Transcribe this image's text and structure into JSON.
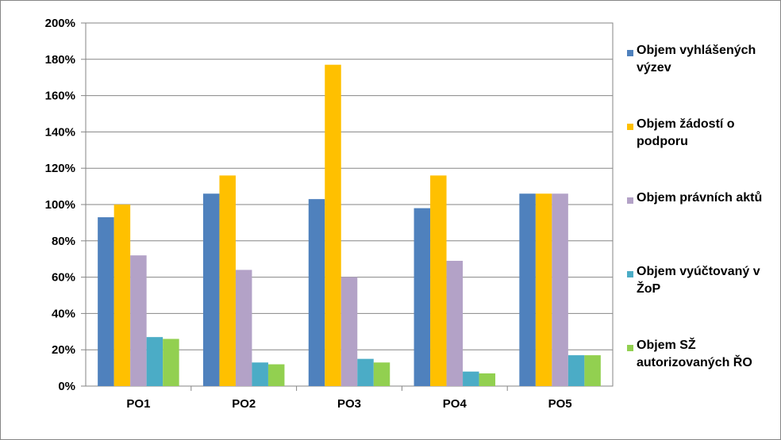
{
  "chart_data": {
    "type": "bar",
    "title": "",
    "xlabel": "",
    "ylabel": "",
    "categories": [
      "PO1",
      "PO2",
      "PO3",
      "PO4",
      "PO5"
    ],
    "ylim": [
      0,
      200
    ],
    "y_ticks": [
      "0%",
      "20%",
      "40%",
      "60%",
      "80%",
      "100%",
      "120%",
      "140%",
      "160%",
      "180%",
      "200%"
    ],
    "grid": true,
    "legend_position": "right",
    "series": [
      {
        "name": "Objem vyhlášených výzev",
        "color": "#4F81BD",
        "values": [
          93,
          106,
          103,
          98,
          106
        ]
      },
      {
        "name": "Objem žádostí o podporu",
        "color": "#FFC000",
        "values": [
          100,
          116,
          177,
          116,
          106
        ]
      },
      {
        "name": "Objem právních aktů",
        "color": "#B3A2C7",
        "values": [
          72,
          64,
          60,
          69,
          106
        ]
      },
      {
        "name": "Objem vyúčtovaný v ŽoP",
        "color": "#4BACC6",
        "values": [
          27,
          13,
          15,
          8,
          17
        ]
      },
      {
        "name": "Objem SŽ autorizovaných ŘO",
        "color": "#92D050",
        "values": [
          26,
          12,
          13,
          7,
          17
        ]
      }
    ]
  }
}
